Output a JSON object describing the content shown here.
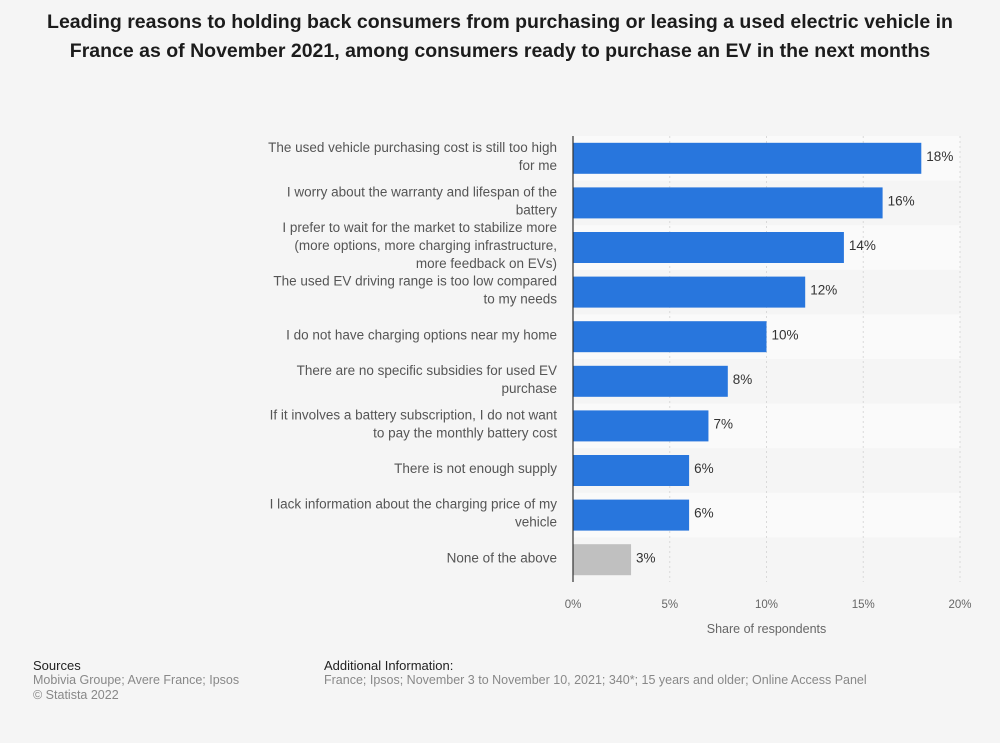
{
  "title": "Leading reasons to holding back consumers from purchasing or leasing a used electric vehicle in France as of November 2021, among consumers ready to purchase an EV in the next months",
  "chart_data": {
    "type": "bar",
    "orientation": "horizontal",
    "categories": [
      [
        "The used vehicle purchasing cost is still too high",
        "for me"
      ],
      [
        "I worry about the warranty and lifespan of the",
        "battery"
      ],
      [
        "I prefer to wait for the market to stabilize more",
        "(more options, more charging infrastructure,",
        "more feedback on EVs)"
      ],
      [
        "The used EV driving range is too low compared",
        "to my needs"
      ],
      [
        "I do not have charging options near my home"
      ],
      [
        "There are no specific subsidies for used EV",
        "purchase"
      ],
      [
        "If it involves a battery subscription, I do not want",
        "to pay the monthly battery cost"
      ],
      [
        "There is not enough supply"
      ],
      [
        "I lack information about the charging price of my",
        "vehicle"
      ],
      [
        "None of the above"
      ]
    ],
    "values": [
      18,
      16,
      14,
      12,
      10,
      8,
      7,
      6,
      6,
      3
    ],
    "value_labels": [
      "18%",
      "16%",
      "14%",
      "12%",
      "10%",
      "8%",
      "7%",
      "6%",
      "6%",
      "3%"
    ],
    "bar_colors": [
      "#2876dd",
      "#2876dd",
      "#2876dd",
      "#2876dd",
      "#2876dd",
      "#2876dd",
      "#2876dd",
      "#2876dd",
      "#2876dd",
      "#c0c0c0"
    ],
    "xlim": [
      0,
      20
    ],
    "ticks": [
      0,
      5,
      10,
      15,
      20
    ],
    "tick_labels": [
      "0%",
      "5%",
      "10%",
      "15%",
      "20%"
    ],
    "xlabel": "Share of respondents",
    "grid": true
  },
  "footer": {
    "sources_heading": "Sources",
    "sources_lines": [
      "Mobivia Groupe; Avere France; Ipsos",
      "© Statista 2022"
    ],
    "additional_heading": "Additional Information:",
    "additional_text": "France; Ipsos; November 3 to November 10, 2021; 340*; 15 years and older; Online Access Panel"
  }
}
